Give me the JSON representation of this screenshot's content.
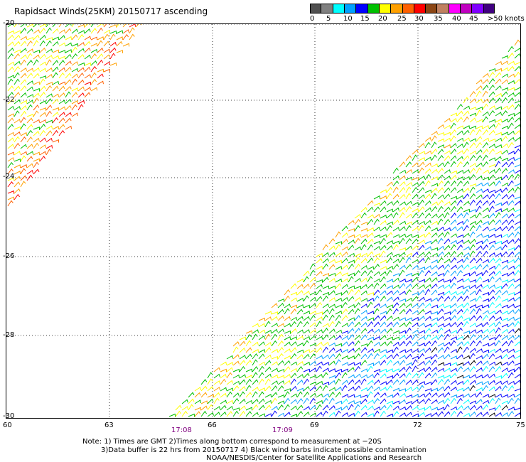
{
  "title": "Rapidsact Winds(25KM)  20150717 ascending",
  "scale": {
    "colors": [
      "#505050",
      "#808080",
      "#00ffff",
      "#00a0ff",
      "#0000ff",
      "#00c000",
      "#ffff00",
      "#ffa000",
      "#ff6000",
      "#ff0000",
      "#8b4513",
      "#c08060",
      "#ff00ff",
      "#c000c0",
      "#8000ff",
      "#400080"
    ],
    "labels": [
      "0",
      "5",
      "10",
      "15",
      "20",
      "25",
      "30",
      "35",
      "40",
      "45",
      ">50 knots"
    ]
  },
  "axes": {
    "lon_labels": [
      "60",
      "63",
      "66",
      "69",
      "72",
      "75"
    ],
    "lat_labels": [
      "-20",
      "-22",
      "-24",
      "-26",
      "-28",
      "-30"
    ]
  },
  "times": [
    "17:08",
    "17:09"
  ],
  "notes": [
    "Note: 1) Times are GMT 2)Times along bottom correspond to measurement at −20S",
    "3)Data buffer is 22 hrs from 20150717 4) Black wind barbs indicate possible contamination",
    "NOAA/NESDIS/Center for Satellite Applications and Research"
  ]
}
